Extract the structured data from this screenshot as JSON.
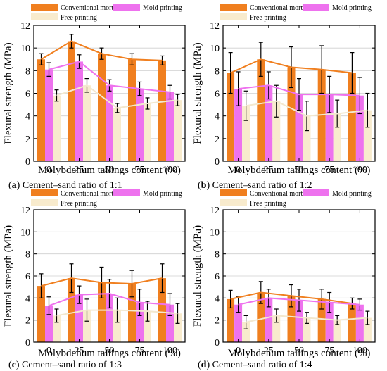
{
  "figure": {
    "colors": {
      "conventional": "#f07f1f",
      "mold": "#ee72ee",
      "free": "#f8ebcd",
      "conventional_line": "#f07f1f",
      "mold_line": "#ee72ee",
      "free_line": "#f3e8cf"
    }
  },
  "chart_data": [
    {
      "type": "bar",
      "panel_letter": "a",
      "caption": "Cement–sand ratio of 1:1",
      "xlabel": "Molybdenum tailings content (%)",
      "ylabel": "Flexural strength (MPa)",
      "ylim": [
        0,
        12
      ],
      "yticks": [
        "0",
        "2",
        "4",
        "6",
        "8",
        "10",
        "12"
      ],
      "grid": true,
      "legend_position": "top",
      "categories": [
        "0",
        "25",
        "50",
        "75",
        "100"
      ],
      "series": [
        {
          "name": "Conventional mortar",
          "values": [
            9.0,
            10.6,
            9.5,
            9.0,
            8.9
          ],
          "errors": [
            0.5,
            0.6,
            0.5,
            0.5,
            0.4
          ]
        },
        {
          "name": "Mold printing",
          "values": [
            8.1,
            8.8,
            6.7,
            6.4,
            6.1
          ],
          "errors": [
            0.6,
            0.6,
            0.5,
            0.6,
            0.6
          ]
        },
        {
          "name": "Free printing",
          "values": [
            5.8,
            6.7,
            4.7,
            5.1,
            5.4
          ],
          "errors": [
            0.5,
            0.6,
            0.4,
            0.5,
            0.5
          ]
        }
      ]
    },
    {
      "type": "bar",
      "panel_letter": "b",
      "caption": "Cement–sand ratio of 1:2",
      "xlabel": "Molybdenum tailings content (%)",
      "ylabel": "Flexural strength (MPa)",
      "ylim": [
        0,
        12
      ],
      "yticks": [
        "0",
        "2",
        "4",
        "6",
        "8",
        "10",
        "12"
      ],
      "grid": true,
      "legend_position": "top",
      "categories": [
        "0",
        "25",
        "50",
        "75",
        "100"
      ],
      "series": [
        {
          "name": "Conventional mortar",
          "values": [
            7.8,
            9.0,
            8.3,
            8.1,
            7.8
          ],
          "errors": [
            1.8,
            1.5,
            1.8,
            2.1,
            1.8
          ]
        },
        {
          "name": "Mold printing",
          "values": [
            6.4,
            6.7,
            5.9,
            5.9,
            5.8
          ],
          "errors": [
            1.5,
            1.2,
            1.4,
            1.6,
            1.6
          ]
        },
        {
          "name": "Free printing",
          "values": [
            4.9,
            5.3,
            4.0,
            4.2,
            4.5
          ],
          "errors": [
            1.3,
            1.4,
            1.3,
            1.2,
            1.5
          ]
        }
      ]
    },
    {
      "type": "bar",
      "panel_letter": "c",
      "caption": "Cement–sand ratio of 1:3",
      "xlabel": "Molybdenum tailings content (%)",
      "ylabel": "Flexural strength (MPa)",
      "ylim": [
        0,
        12
      ],
      "yticks": [
        "0",
        "2",
        "4",
        "6",
        "8",
        "10",
        "12"
      ],
      "grid": true,
      "legend_position": "top",
      "categories": [
        "0",
        "25",
        "50",
        "75",
        "100"
      ],
      "series": [
        {
          "name": "Conventional mortar",
          "values": [
            5.1,
            5.8,
            5.4,
            5.3,
            5.8
          ],
          "errors": [
            1.1,
            1.3,
            1.4,
            1.2,
            1.3
          ]
        },
        {
          "name": "Mold printing",
          "values": [
            3.3,
            4.3,
            4.4,
            3.6,
            3.4
          ],
          "errors": [
            0.8,
            0.8,
            1.3,
            1.2,
            1.0
          ]
        },
        {
          "name": "Free printing",
          "values": [
            2.4,
            2.9,
            2.9,
            2.8,
            2.6
          ],
          "errors": [
            0.6,
            1.0,
            1.1,
            0.9,
            0.9
          ]
        }
      ]
    },
    {
      "type": "bar",
      "panel_letter": "d",
      "caption": "Cement–sand ratio of 1:4",
      "xlabel": "Molybdenum tailings content (%)",
      "ylabel": "Flexural strength (MPa)",
      "ylim": [
        0,
        12
      ],
      "yticks": [
        "0",
        "2",
        "4",
        "6",
        "8",
        "10",
        "12"
      ],
      "grid": true,
      "legend_position": "top",
      "categories": [
        "0",
        "25",
        "50",
        "75",
        "100"
      ],
      "series": [
        {
          "name": "Conventional mortar",
          "values": [
            3.9,
            4.5,
            4.2,
            3.9,
            3.5
          ],
          "errors": [
            0.8,
            1.0,
            1.0,
            0.9,
            0.5
          ]
        },
        {
          "name": "Mold printing",
          "values": [
            3.4,
            4.0,
            3.8,
            3.6,
            3.4
          ],
          "errors": [
            0.7,
            0.8,
            1.0,
            0.9,
            0.5
          ]
        },
        {
          "name": "Free printing",
          "values": [
            1.8,
            2.4,
            2.2,
            2.0,
            2.2
          ],
          "errors": [
            0.6,
            0.6,
            0.5,
            0.4,
            0.6
          ]
        }
      ]
    }
  ]
}
